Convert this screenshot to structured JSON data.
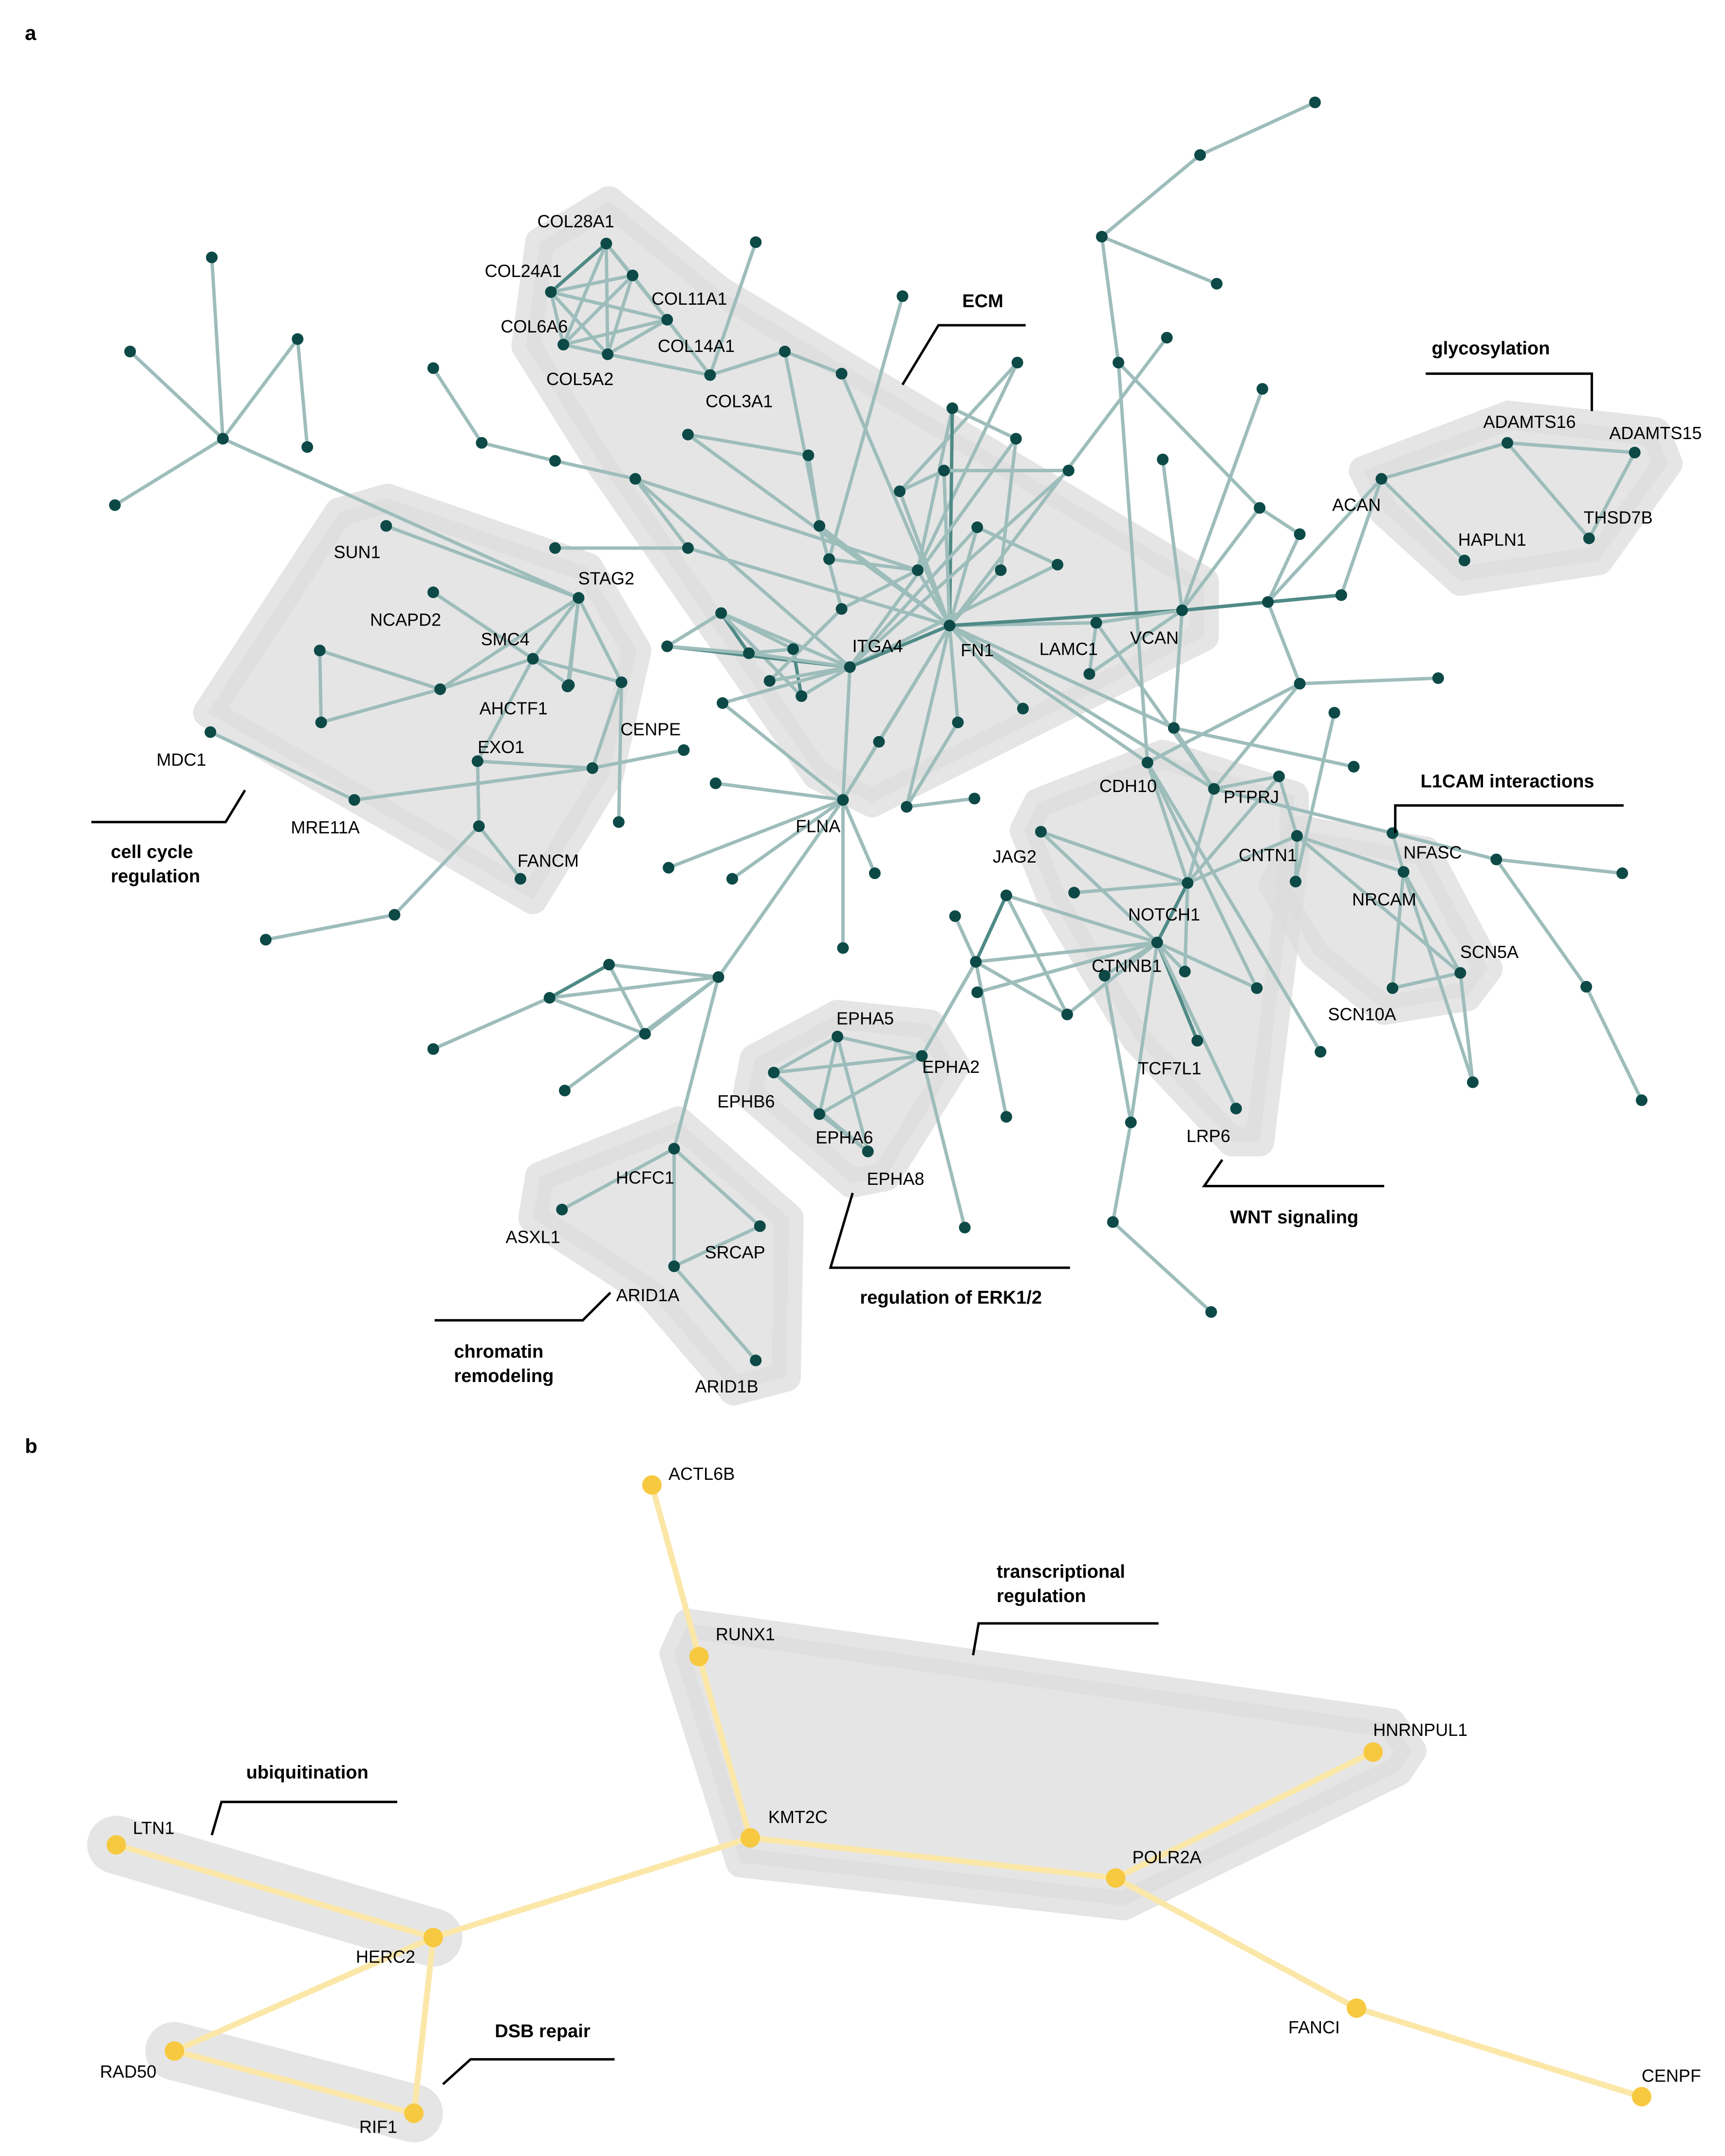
{
  "panels": [
    {
      "id": "a",
      "label": "a",
      "groups": [
        {
          "id": "ecm",
          "label": "ECM"
        },
        {
          "id": "glyco",
          "label": "glycosylation"
        },
        {
          "id": "cellcycle",
          "label": "cell cycle\nregulation"
        },
        {
          "id": "l1cam",
          "label": "L1CAM interactions"
        },
        {
          "id": "wnt",
          "label": "WNT signaling"
        },
        {
          "id": "erk",
          "label": "regulation of ERK1/2"
        },
        {
          "id": "chromatin",
          "label": "chromatin\nremodeling"
        }
      ],
      "nodes": [
        {
          "id": "COL28A1",
          "label": "COL28A1"
        },
        {
          "id": "COL24A1",
          "label": "COL24A1"
        },
        {
          "id": "COL11A1",
          "label": "COL11A1"
        },
        {
          "id": "COL6A6",
          "label": "COL6A6"
        },
        {
          "id": "COL14A1",
          "label": "COL14A1"
        },
        {
          "id": "COL5A2",
          "label": "COL5A2"
        },
        {
          "id": "COL3A1",
          "label": "COL3A1"
        },
        {
          "id": "ADAMTS16",
          "label": "ADAMTS16"
        },
        {
          "id": "ADAMTS15",
          "label": "ADAMTS15"
        },
        {
          "id": "ACAN",
          "label": "ACAN"
        },
        {
          "id": "THSD7B",
          "label": "THSD7B"
        },
        {
          "id": "HAPLN1",
          "label": "HAPLN1"
        },
        {
          "id": "SUN1",
          "label": "SUN1"
        },
        {
          "id": "STAG2",
          "label": "STAG2"
        },
        {
          "id": "NCAPD2",
          "label": "NCAPD2"
        },
        {
          "id": "SMC4",
          "label": "SMC4"
        },
        {
          "id": "ITGA4",
          "label": "ITGA4"
        },
        {
          "id": "FN1",
          "label": "FN1"
        },
        {
          "id": "LAMC1",
          "label": "LAMC1"
        },
        {
          "id": "VCAN",
          "label": "VCAN"
        },
        {
          "id": "AHCTF1",
          "label": "AHCTF1"
        },
        {
          "id": "CENPE",
          "label": "CENPE"
        },
        {
          "id": "MDC1",
          "label": "MDC1"
        },
        {
          "id": "EXO1",
          "label": "EXO1"
        },
        {
          "id": "MRE11A",
          "label": "MRE11A"
        },
        {
          "id": "FANCM",
          "label": "FANCM"
        },
        {
          "id": "FLNA",
          "label": "FLNA"
        },
        {
          "id": "CDH10",
          "label": "CDH10"
        },
        {
          "id": "PTPRJ",
          "label": "PTPRJ"
        },
        {
          "id": "NFASC",
          "label": "NFASC"
        },
        {
          "id": "CNTN1",
          "label": "CNTN1"
        },
        {
          "id": "JAG2",
          "label": "JAG2"
        },
        {
          "id": "NRCAM",
          "label": "NRCAM"
        },
        {
          "id": "NOTCH1",
          "label": "NOTCH1"
        },
        {
          "id": "SCN5A",
          "label": "SCN5A"
        },
        {
          "id": "CTNNB1",
          "label": "CTNNB1"
        },
        {
          "id": "SCN10A",
          "label": "SCN10A"
        },
        {
          "id": "EPHA5",
          "label": "EPHA5"
        },
        {
          "id": "EPHA2",
          "label": "EPHA2"
        },
        {
          "id": "TCF7L1",
          "label": "TCF7L1"
        },
        {
          "id": "EPHB6",
          "label": "EPHB6"
        },
        {
          "id": "EPHA6",
          "label": "EPHA6"
        },
        {
          "id": "LRP6",
          "label": "LRP6"
        },
        {
          "id": "HCFC1",
          "label": "HCFC1"
        },
        {
          "id": "EPHA8",
          "label": "EPHA8"
        },
        {
          "id": "ASXL1",
          "label": "ASXL1"
        },
        {
          "id": "SRCAP",
          "label": "SRCAP"
        },
        {
          "id": "ARID1A",
          "label": "ARID1A"
        },
        {
          "id": "ARID1B",
          "label": "ARID1B"
        }
      ]
    },
    {
      "id": "b",
      "label": "b",
      "groups": [
        {
          "id": "transcription",
          "label": "transcriptional\nregulation"
        },
        {
          "id": "ubiquitination",
          "label": "ubiquitination"
        },
        {
          "id": "dsb",
          "label": "DSB repair"
        }
      ],
      "nodes": [
        {
          "id": "ACTL6B",
          "label": "ACTL6B"
        },
        {
          "id": "RUNX1",
          "label": "RUNX1"
        },
        {
          "id": "HNRNPUL1",
          "label": "HNRNPUL1"
        },
        {
          "id": "LTN1",
          "label": "LTN1"
        },
        {
          "id": "KMT2C",
          "label": "KMT2C"
        },
        {
          "id": "POLR2A",
          "label": "POLR2A"
        },
        {
          "id": "HERC2",
          "label": "HERC2"
        },
        {
          "id": "FANCI",
          "label": "FANCI"
        },
        {
          "id": "RAD50",
          "label": "RAD50"
        },
        {
          "id": "RIF1",
          "label": "RIF1"
        },
        {
          "id": "CENPF",
          "label": "CENPF"
        }
      ],
      "edges": [
        [
          "ACTL6B",
          "RUNX1"
        ],
        [
          "RUNX1",
          "KMT2C"
        ],
        [
          "KMT2C",
          "POLR2A"
        ],
        [
          "POLR2A",
          "HNRNPUL1"
        ],
        [
          "POLR2A",
          "FANCI"
        ],
        [
          "FANCI",
          "CENPF"
        ],
        [
          "KMT2C",
          "HERC2"
        ],
        [
          "LTN1",
          "HERC2"
        ],
        [
          "HERC2",
          "RAD50"
        ],
        [
          "HERC2",
          "RIF1"
        ],
        [
          "RAD50",
          "RIF1"
        ]
      ]
    }
  ],
  "colors": {
    "edge_a": "#9dbdbb",
    "edge_a_strong": "#4f8a86",
    "node_a": "#0d4a47",
    "edge_b": "#fbe7a8",
    "node_b": "#f7c941",
    "hull": "#dcdcdc"
  }
}
